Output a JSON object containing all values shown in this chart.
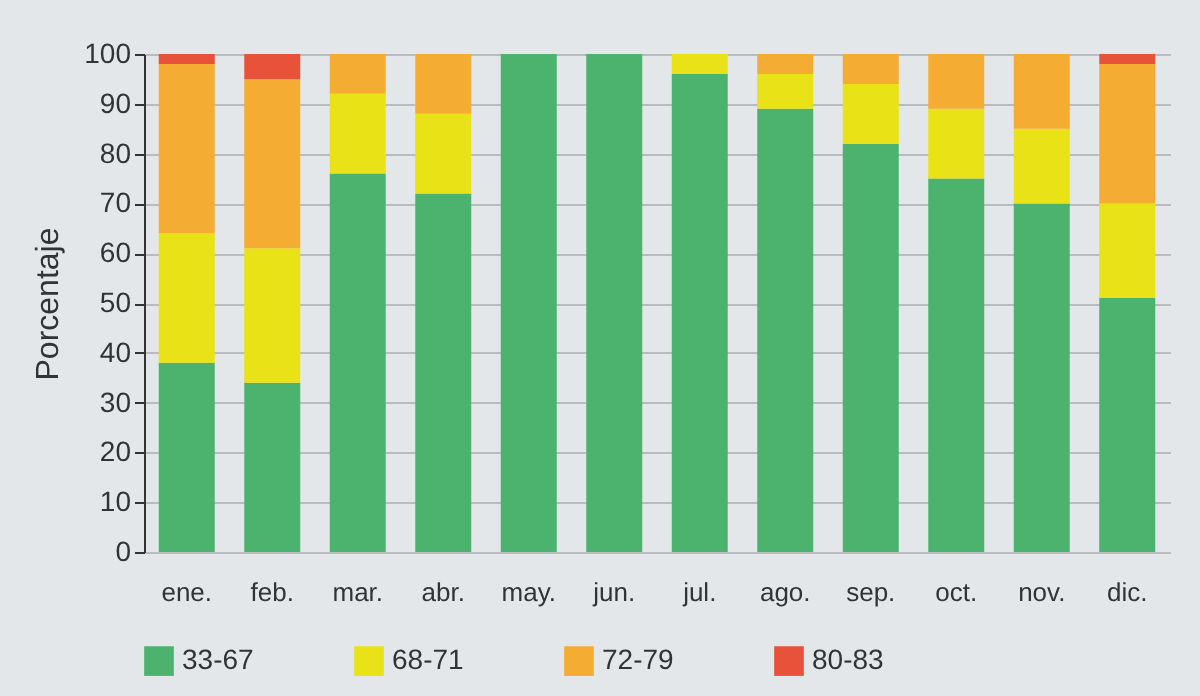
{
  "chart_data": {
    "type": "bar",
    "stacked": true,
    "ylabel": "Porcentaje",
    "categories": [
      "ene.",
      "feb.",
      "mar.",
      "abr.",
      "may.",
      "jun.",
      "jul.",
      "ago.",
      "sep.",
      "oct.",
      "nov.",
      "dic."
    ],
    "series": [
      {
        "name": "33-67",
        "color": "#4bb36e",
        "values": [
          38,
          34,
          76,
          72,
          100,
          100,
          96,
          89,
          82,
          75,
          70,
          51
        ]
      },
      {
        "name": "68-71",
        "color": "#e8e217",
        "values": [
          26,
          27,
          16,
          16,
          0,
          0,
          4,
          7,
          12,
          14,
          15,
          19
        ]
      },
      {
        "name": "72-79",
        "color": "#f5ac33",
        "values": [
          34,
          34,
          8,
          12,
          0,
          0,
          0,
          4,
          6,
          11,
          15,
          28
        ]
      },
      {
        "name": "80-83",
        "color": "#e8523a",
        "values": [
          2,
          5,
          0,
          0,
          0,
          0,
          0,
          0,
          0,
          0,
          0,
          2
        ]
      }
    ],
    "ylim": [
      0,
      100
    ],
    "yticks": [
      0,
      10,
      20,
      30,
      40,
      50,
      60,
      70,
      80,
      90,
      100
    ],
    "grid": "y",
    "legend": "bottom"
  }
}
